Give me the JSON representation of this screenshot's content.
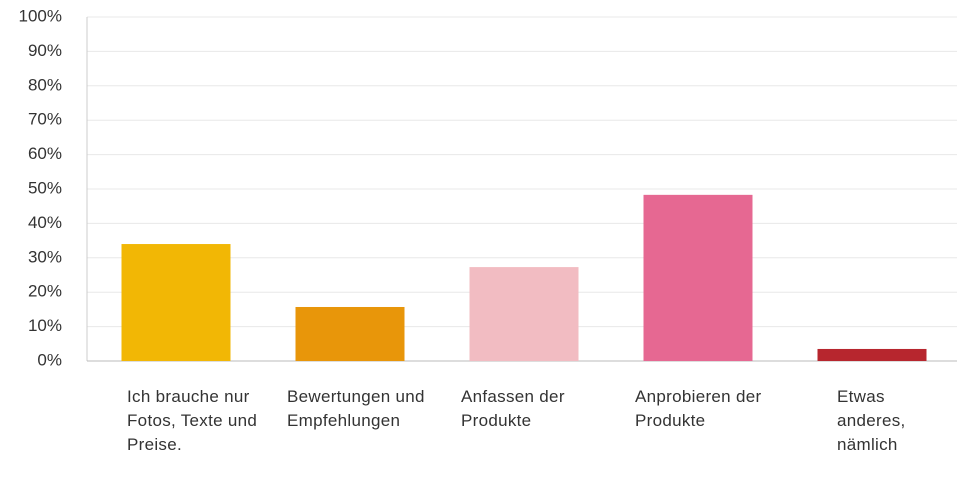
{
  "chart_data": {
    "type": "bar",
    "categories": [
      "Ich brauche nur Fotos, Texte und Preise.",
      "Bewertungen und Empfehlungen",
      "Anfassen der Produkte",
      "Anprobieren der Produkte",
      "Etwas anderes, nämlich"
    ],
    "values": [
      34.0,
      15.7,
      27.3,
      48.3,
      3.5
    ],
    "colors": [
      "#f2b705",
      "#e8960a",
      "#f2bcc2",
      "#e66892",
      "#b7262e"
    ],
    "ylim": [
      0,
      100
    ],
    "yticks": [
      {
        "value": 0,
        "label": "0%"
      },
      {
        "value": 10,
        "label": "10%"
      },
      {
        "value": 20,
        "label": "20%"
      },
      {
        "value": 30,
        "label": "30%"
      },
      {
        "value": 40,
        "label": "40%"
      },
      {
        "value": 50,
        "label": "50%"
      },
      {
        "value": 60,
        "label": "60%"
      },
      {
        "value": 70,
        "label": "70%"
      },
      {
        "value": 80,
        "label": "80%"
      },
      {
        "value": 90,
        "label": "90%"
      },
      {
        "value": 100,
        "label": "100%"
      }
    ],
    "grid": true
  }
}
